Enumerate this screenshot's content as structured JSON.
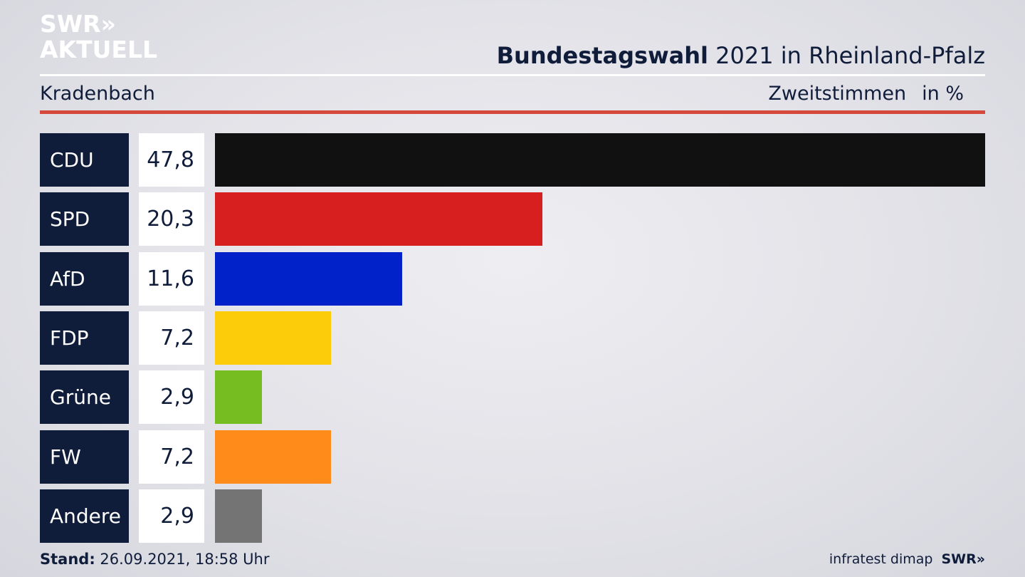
{
  "logo": {
    "line1": "SWR»",
    "line2": "AKTUELL"
  },
  "header": {
    "title_bold": "Bundestagswahl",
    "title_rest": " 2021 in Rheinland-Pfalz"
  },
  "subheader": {
    "location": "Kradenbach",
    "measure": "Zweitstimmen",
    "unit": "in %"
  },
  "chart_data": {
    "type": "bar",
    "orientation": "horizontal",
    "categories": [
      "CDU",
      "SPD",
      "AfD",
      "FDP",
      "Grüne",
      "FW",
      "Andere"
    ],
    "values": [
      47.8,
      20.3,
      11.6,
      7.2,
      2.9,
      7.2,
      2.9
    ],
    "value_labels": [
      "47,8",
      "20,3",
      "11,6",
      "7,2",
      "2,9",
      "7,2",
      "2,9"
    ],
    "colors": [
      "#111111",
      "#d71f1f",
      "#0022c8",
      "#fccc0a",
      "#76bd22",
      "#ff8c1a",
      "#747474"
    ],
    "xlim": [
      0,
      47.8
    ]
  },
  "footer": {
    "stand_label": "Stand:",
    "stand_value": " 26.09.2021, 18:58 Uhr",
    "source": "infratest dimap",
    "brand": "SWR»"
  }
}
